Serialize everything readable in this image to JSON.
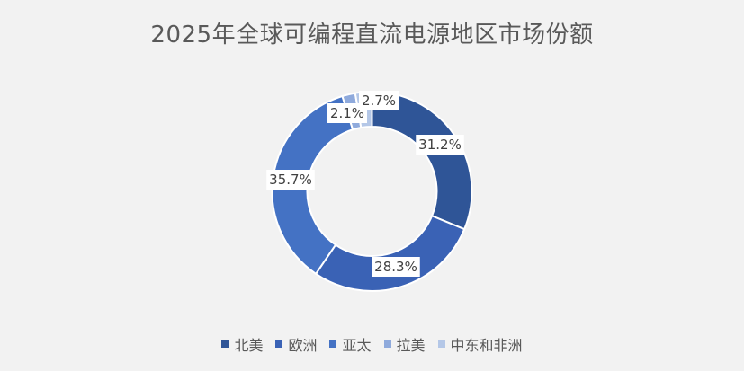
{
  "chart_data": {
    "type": "pie",
    "title": "2025年全球可编程直流电源地区市场份额",
    "categories": [
      "北美",
      "欧洲",
      "亚太",
      "拉美",
      "中东和非洲"
    ],
    "values": [
      31.2,
      28.3,
      35.7,
      2.1,
      2.7
    ],
    "value_labels": [
      "31.2%",
      "28.3%",
      "35.7%",
      "2.1%",
      "2.7%"
    ],
    "colors": [
      "#2f5597",
      "#3a62b5",
      "#4472c4",
      "#8faadc",
      "#b4c7e7"
    ],
    "legend_position": "bottom",
    "donut": true
  }
}
